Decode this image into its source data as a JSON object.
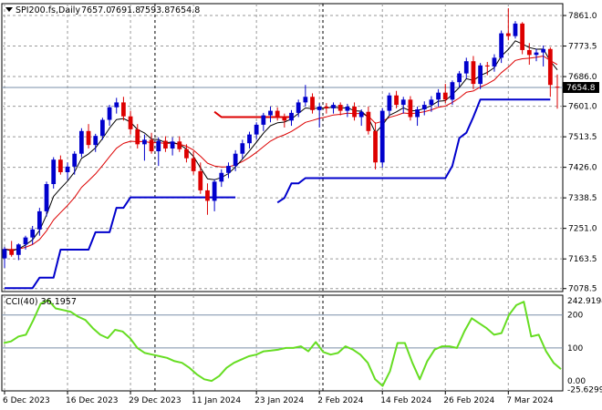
{
  "chart_data": [
    {
      "type": "candlestick",
      "title": "SPI200.fs,Daily",
      "ohlc_readout": [
        "7657.0",
        "7691.8",
        "7593.8",
        "7654.8"
      ],
      "current_price": 7654.8,
      "current_price_label": "7654.8",
      "ylim": [
        7070,
        7895
      ],
      "y_ticks": [
        7861.0,
        7773.5,
        7686.0,
        7601.0,
        7513.5,
        7426.0,
        7338.5,
        7251.0,
        7163.5,
        7078.5
      ],
      "y_tick_labels": [
        "7861.0",
        "7773.5",
        "7686.0",
        "7601.0",
        "7513.5",
        "7426.0",
        "7338.5",
        "7251.0",
        "7163.5",
        "7078.5"
      ],
      "x_ticks": [
        {
          "index": 0,
          "label": "6 Dec 2023"
        },
        {
          "index": 9,
          "label": "16 Dec 2023"
        },
        {
          "index": 18,
          "label": "29 Dec 2023"
        },
        {
          "index": 27,
          "label": "11 Jan 2024"
        },
        {
          "index": 36,
          "label": "23 Jan 2024"
        },
        {
          "index": 45,
          "label": "2 Feb 2024"
        },
        {
          "index": 54,
          "label": "14 Feb 2024"
        },
        {
          "index": 63,
          "label": "26 Feb 2024"
        },
        {
          "index": 72,
          "label": "7 Mar 2024"
        }
      ],
      "vertical_separators": [
        21.5,
        45.5
      ],
      "up_color": "#0000cc",
      "down_color": "#dd0000",
      "candles": [
        [
          7165,
          7198,
          7138,
          7192
        ],
        [
          7192,
          7215,
          7170,
          7175
        ],
        [
          7175,
          7208,
          7160,
          7205
        ],
        [
          7205,
          7230,
          7190,
          7225
        ],
        [
          7225,
          7258,
          7205,
          7248
        ],
        [
          7248,
          7310,
          7230,
          7300
        ],
        [
          7300,
          7385,
          7285,
          7378
        ],
        [
          7378,
          7455,
          7365,
          7448
        ],
        [
          7448,
          7460,
          7405,
          7412
        ],
        [
          7412,
          7440,
          7390,
          7428
        ],
        [
          7428,
          7472,
          7405,
          7465
        ],
        [
          7465,
          7538,
          7455,
          7530
        ],
        [
          7530,
          7550,
          7480,
          7490
        ],
        [
          7490,
          7522,
          7470,
          7516
        ],
        [
          7516,
          7568,
          7505,
          7562
        ],
        [
          7562,
          7605,
          7545,
          7598
        ],
        [
          7598,
          7625,
          7580,
          7612
        ],
        [
          7612,
          7628,
          7560,
          7572
        ],
        [
          7572,
          7588,
          7520,
          7535
        ],
        [
          7535,
          7550,
          7480,
          7492
        ],
        [
          7492,
          7520,
          7445,
          7505
        ],
        [
          7505,
          7525,
          7465,
          7472
        ],
        [
          7472,
          7512,
          7430,
          7502
        ],
        [
          7502,
          7515,
          7470,
          7480
        ],
        [
          7480,
          7512,
          7460,
          7500
        ],
        [
          7500,
          7515,
          7470,
          7478
        ],
        [
          7478,
          7492,
          7440,
          7452
        ],
        [
          7452,
          7472,
          7405,
          7415
        ],
        [
          7415,
          7440,
          7350,
          7360
        ],
        [
          7360,
          7380,
          7290,
          7330
        ],
        [
          7330,
          7392,
          7300,
          7385
        ],
        [
          7385,
          7420,
          7370,
          7410
        ],
        [
          7410,
          7440,
          7395,
          7430
        ],
        [
          7430,
          7475,
          7415,
          7465
        ],
        [
          7465,
          7505,
          7450,
          7495
        ],
        [
          7495,
          7528,
          7480,
          7520
        ],
        [
          7520,
          7555,
          7505,
          7548
        ],
        [
          7548,
          7582,
          7530,
          7575
        ],
        [
          7575,
          7600,
          7555,
          7588
        ],
        [
          7588,
          7598,
          7560,
          7570
        ],
        [
          7570,
          7580,
          7540,
          7560
        ],
        [
          7560,
          7590,
          7545,
          7582
        ],
        [
          7582,
          7620,
          7570,
          7612
        ],
        [
          7612,
          7662,
          7600,
          7628
        ],
        [
          7628,
          7638,
          7580,
          7590
        ],
        [
          7590,
          7610,
          7540,
          7600
        ],
        [
          7600,
          7610,
          7580,
          7595
        ],
        [
          7595,
          7612,
          7580,
          7605
        ],
        [
          7605,
          7612,
          7575,
          7588
        ],
        [
          7588,
          7608,
          7570,
          7600
        ],
        [
          7600,
          7612,
          7560,
          7570
        ],
        [
          7570,
          7592,
          7545,
          7585
        ],
        [
          7585,
          7600,
          7520,
          7530
        ],
        [
          7530,
          7555,
          7420,
          7440
        ],
        [
          7440,
          7595,
          7425,
          7588
        ],
        [
          7588,
          7640,
          7575,
          7632
        ],
        [
          7632,
          7645,
          7595,
          7605
        ],
        [
          7605,
          7628,
          7580,
          7620
        ],
        [
          7620,
          7630,
          7560,
          7570
        ],
        [
          7570,
          7600,
          7545,
          7592
        ],
        [
          7592,
          7615,
          7575,
          7605
        ],
        [
          7605,
          7630,
          7585,
          7620
        ],
        [
          7620,
          7650,
          7600,
          7640
        ],
        [
          7640,
          7665,
          7610,
          7620
        ],
        [
          7620,
          7675,
          7605,
          7670
        ],
        [
          7670,
          7702,
          7655,
          7695
        ],
        [
          7695,
          7740,
          7680,
          7730
        ],
        [
          7730,
          7745,
          7650,
          7665
        ],
        [
          7665,
          7725,
          7650,
          7718
        ],
        [
          7718,
          7728,
          7690,
          7715
        ],
        [
          7715,
          7750,
          7700,
          7740
        ],
        [
          7740,
          7818,
          7725,
          7810
        ],
        [
          7810,
          7882,
          7790,
          7802
        ],
        [
          7802,
          7845,
          7795,
          7838
        ],
        [
          7838,
          7842,
          7750,
          7762
        ],
        [
          7762,
          7782,
          7720,
          7748
        ],
        [
          7748,
          7766,
          7730,
          7755
        ],
        [
          7755,
          7775,
          7715,
          7765
        ],
        [
          7765,
          7770,
          7628,
          7662
        ],
        [
          7657,
          7692,
          7594,
          7655
        ]
      ],
      "indicator_colors": {
        "fast_ma": "#000000",
        "slow_ma": "#dd0000",
        "stop_line": "#0000cc"
      },
      "stop_line_blue": [
        [
          0,
          7080
        ],
        [
          1,
          7080
        ],
        [
          2,
          7080
        ],
        [
          3,
          7080
        ],
        [
          4,
          7080
        ],
        [
          5,
          7110
        ],
        [
          6,
          7110
        ],
        [
          7,
          7110
        ],
        [
          8,
          7190
        ],
        [
          9,
          7190
        ],
        [
          10,
          7190
        ],
        [
          11,
          7190
        ],
        [
          12,
          7190
        ],
        [
          13,
          7240
        ],
        [
          14,
          7240
        ],
        [
          15,
          7240
        ],
        [
          16,
          7310
        ],
        [
          17,
          7310
        ],
        [
          18,
          7340
        ],
        [
          19,
          7340
        ],
        [
          20,
          7340
        ],
        [
          21,
          7340
        ],
        [
          22,
          7340
        ],
        [
          23,
          7340
        ],
        [
          24,
          7340
        ],
        [
          25,
          7340
        ],
        [
          26,
          7340
        ],
        [
          27,
          7340
        ],
        [
          28,
          7340
        ],
        [
          29,
          7340
        ],
        [
          30,
          7340
        ],
        [
          31,
          7340
        ],
        [
          32,
          7340
        ],
        [
          33,
          7340
        ]
      ],
      "stop_line_blue_2": [
        [
          39,
          7325
        ],
        [
          40,
          7338
        ],
        [
          41,
          7380
        ],
        [
          42,
          7380
        ],
        [
          43,
          7395
        ],
        [
          44,
          7395
        ],
        [
          45,
          7395
        ],
        [
          46,
          7395
        ],
        [
          47,
          7395
        ],
        [
          48,
          7395
        ],
        [
          49,
          7395
        ],
        [
          50,
          7395
        ],
        [
          51,
          7395
        ],
        [
          52,
          7395
        ],
        [
          53,
          7395
        ],
        [
          54,
          7395
        ],
        [
          55,
          7395
        ],
        [
          56,
          7395
        ],
        [
          57,
          7395
        ],
        [
          58,
          7395
        ],
        [
          59,
          7395
        ],
        [
          60,
          7395
        ],
        [
          61,
          7395
        ],
        [
          62,
          7395
        ],
        [
          63,
          7395
        ],
        [
          64,
          7430
        ],
        [
          65,
          7510
        ],
        [
          66,
          7525
        ],
        [
          67,
          7570
        ],
        [
          68,
          7620
        ],
        [
          69,
          7620
        ],
        [
          70,
          7620
        ],
        [
          71,
          7620
        ],
        [
          72,
          7620
        ],
        [
          73,
          7620
        ],
        [
          74,
          7620
        ],
        [
          75,
          7620
        ],
        [
          76,
          7620
        ],
        [
          77,
          7620
        ],
        [
          78,
          7620
        ]
      ],
      "stop_line_red": [
        [
          30,
          7585
        ],
        [
          31,
          7570
        ],
        [
          32,
          7570
        ],
        [
          33,
          7570
        ],
        [
          34,
          7570
        ],
        [
          35,
          7570
        ],
        [
          36,
          7570
        ],
        [
          37,
          7570
        ],
        [
          38,
          7570
        ],
        [
          39,
          7570
        ],
        [
          40,
          7570
        ],
        [
          41,
          7570
        ]
      ]
    },
    {
      "type": "line",
      "title": "CCI(40) 36.1957",
      "ylim": [
        -30,
        260
      ],
      "y_ticks": [
        242.9194,
        200,
        100,
        0.0,
        -25.6299
      ],
      "y_tick_labels": [
        "242.9194",
        "200",
        "100",
        "0.00",
        "-25.6299"
      ],
      "levels": [
        200,
        100
      ],
      "line_color": "#66dd22",
      "series": [
        {
          "values": [
            115,
            120,
            135,
            140,
            185,
            235,
            245,
            220,
            215,
            210,
            195,
            185,
            160,
            140,
            130,
            155,
            150,
            130,
            100,
            85,
            80,
            75,
            70,
            60,
            55,
            40,
            20,
            5,
            0,
            15,
            40,
            55,
            65,
            75,
            80,
            90,
            92,
            95,
            100,
            100,
            105,
            90,
            118,
            88,
            80,
            85,
            105,
            95,
            80,
            55,
            5,
            -15,
            30,
            115,
            115,
            55,
            5,
            60,
            95,
            105,
            105,
            100,
            150,
            190,
            175,
            160,
            140,
            145,
            200,
            230,
            240,
            135,
            140,
            90,
            55,
            36
          ]
        }
      ]
    }
  ]
}
